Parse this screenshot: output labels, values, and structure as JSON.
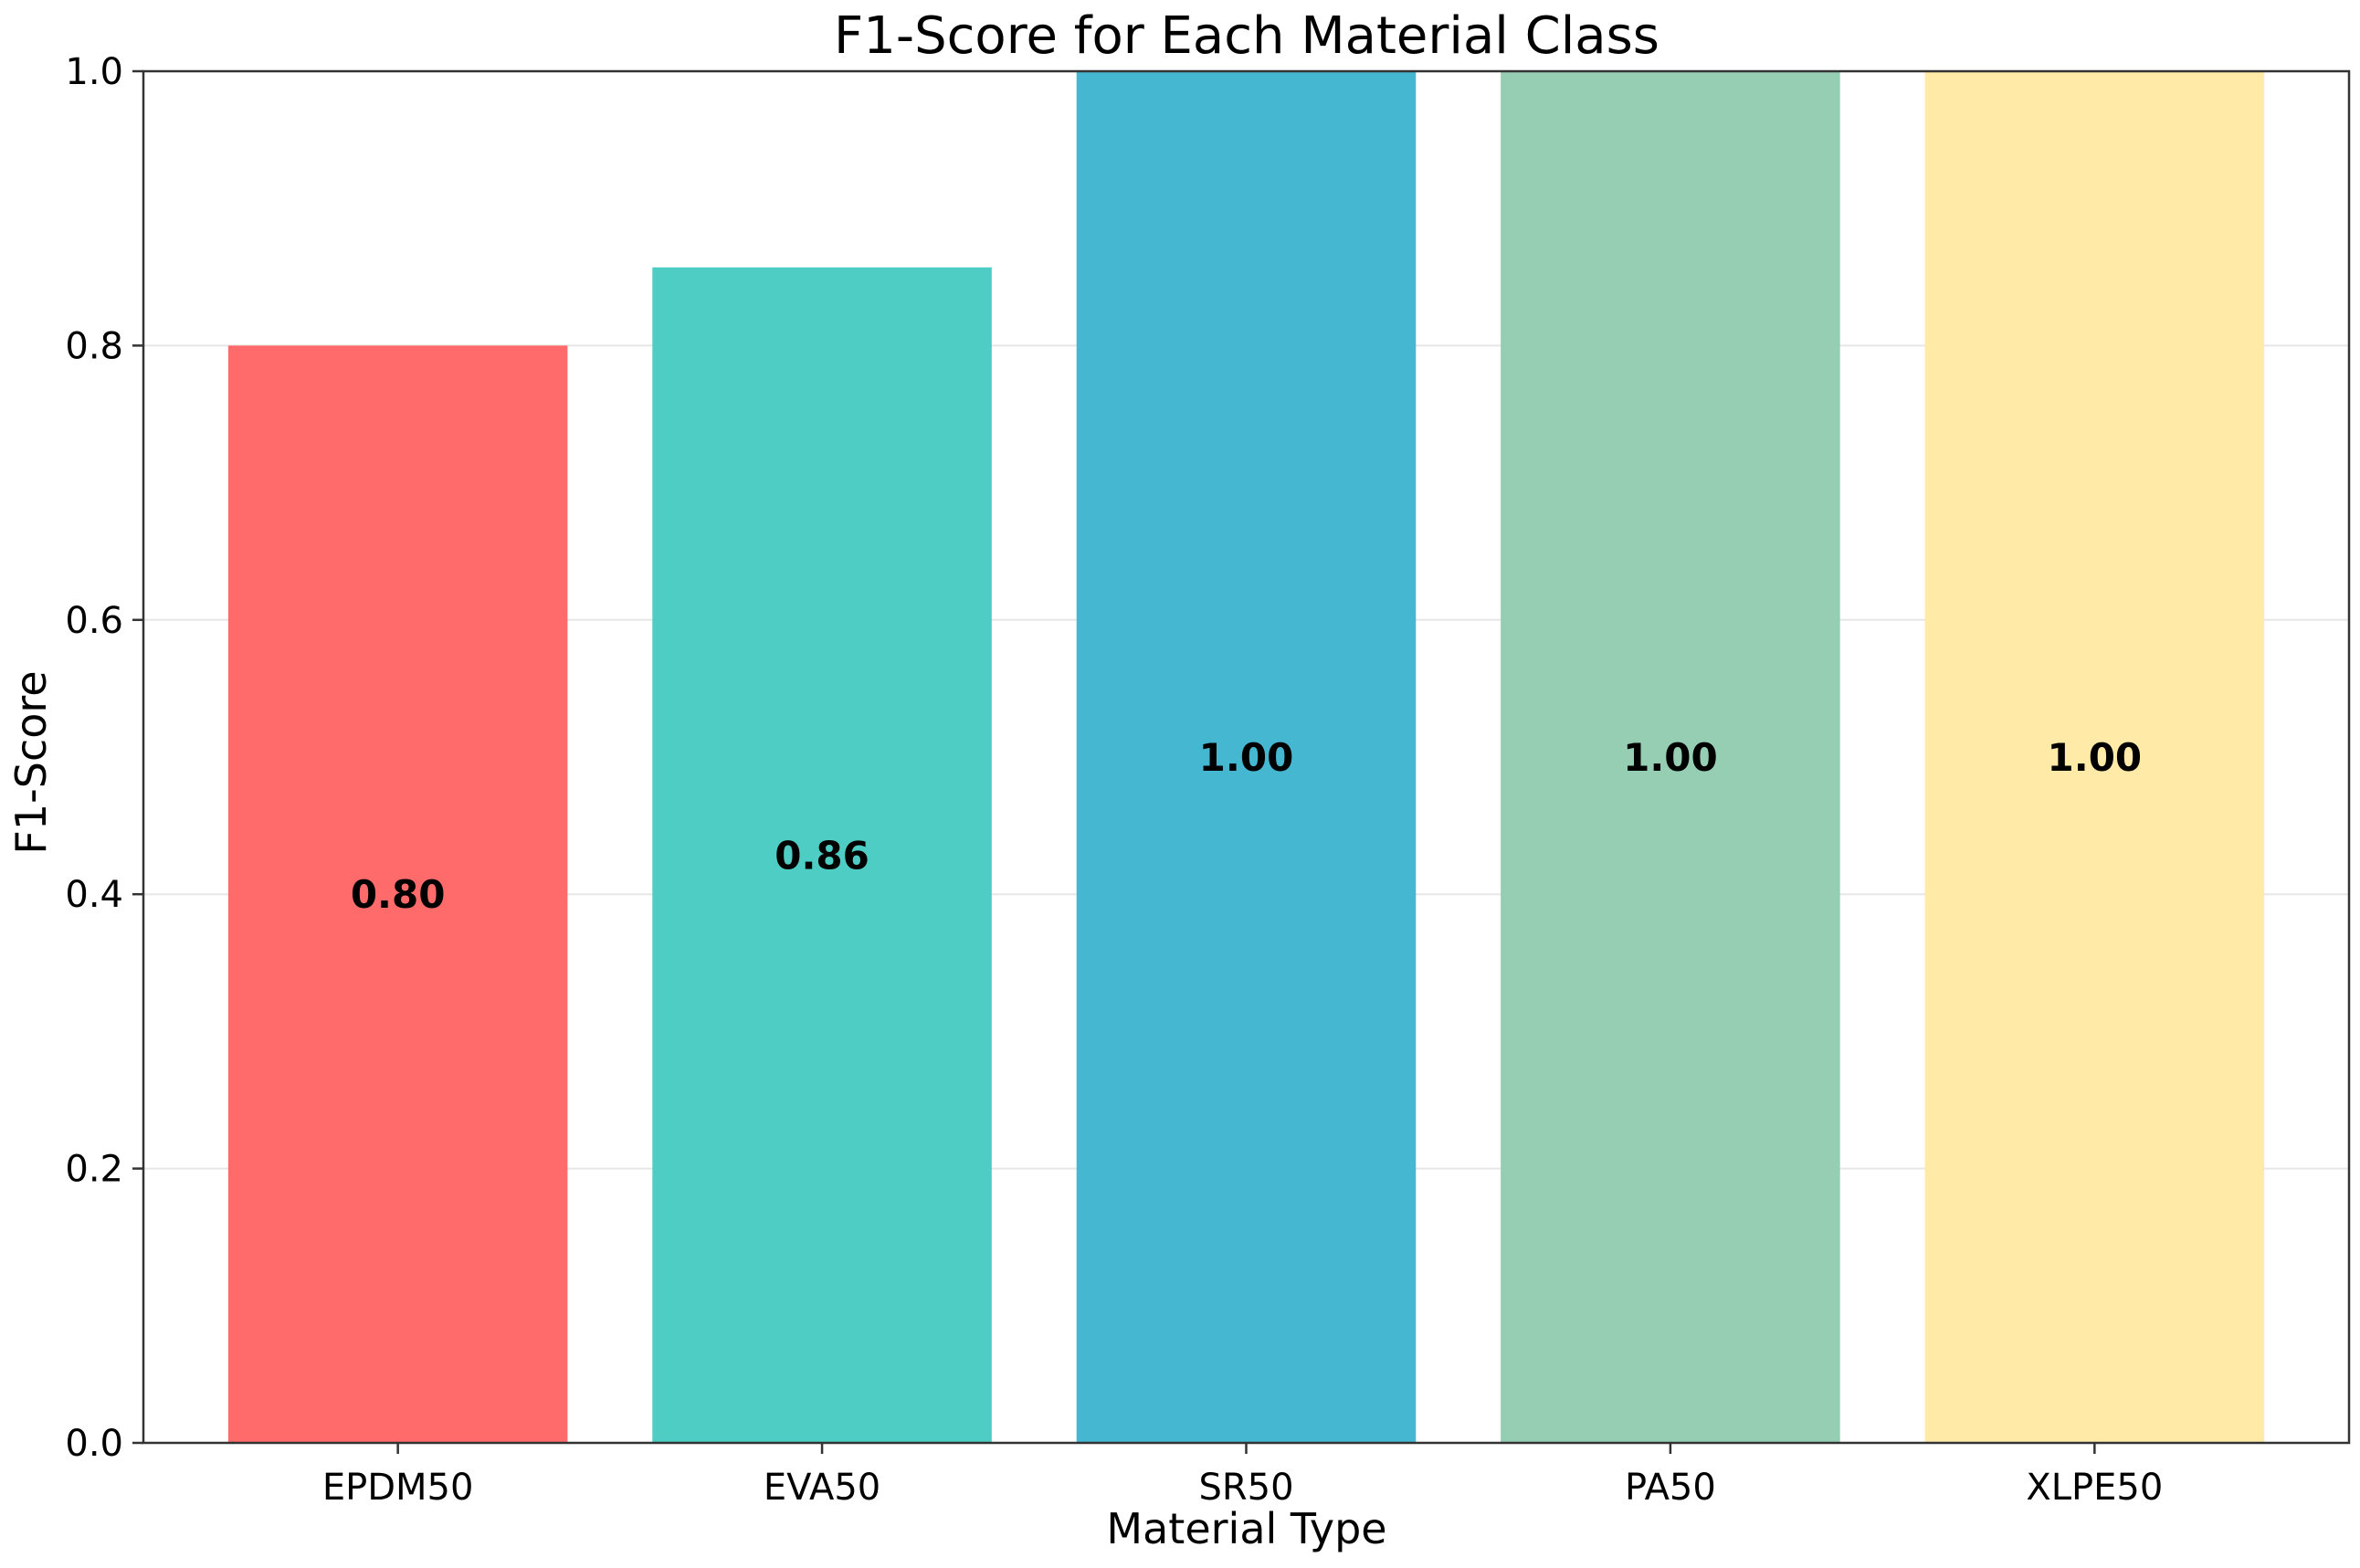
{
  "chart_data": {
    "type": "bar",
    "title": "F1-Score for Each Material Class",
    "xlabel": "Material Type",
    "ylabel": "F1-Score",
    "categories": [
      "EPDM50",
      "EVA50",
      "SR50",
      "PA50",
      "XLPE50"
    ],
    "values": [
      0.8,
      0.857,
      1.0,
      1.0,
      1.0
    ],
    "data_labels": [
      "0.80",
      "0.86",
      "1.00",
      "1.00",
      "1.00"
    ],
    "colors": [
      "#ff6b6b",
      "#4ecdc4",
      "#45b7d1",
      "#96ceb4",
      "#ffeaa7"
    ],
    "ylim": [
      0,
      1.0
    ],
    "yticks": [
      0.0,
      0.2,
      0.4,
      0.6,
      0.8,
      1.0
    ],
    "ytick_labels": [
      "0.0",
      "0.2",
      "0.4",
      "0.6",
      "0.8",
      "1.0"
    ],
    "grid": "horizontal",
    "legend": "none"
  }
}
